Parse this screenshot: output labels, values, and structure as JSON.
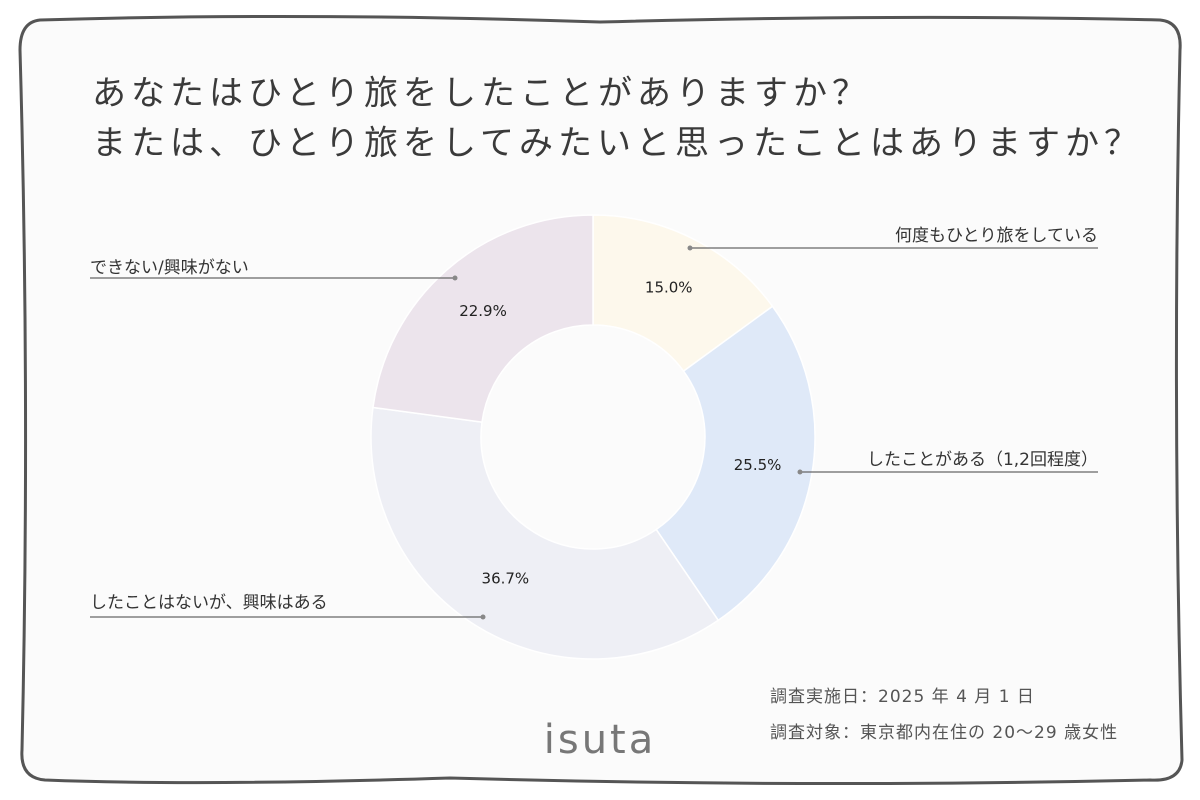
{
  "chart_data": {
    "type": "donut",
    "title_lines": [
      "あなたはひとり旅をしたことがありますか？",
      "または、ひとり旅をしてみたいと思ったことはありますか？"
    ],
    "categories": [
      "何度もひとり旅をしている",
      "したことがある（1,2回程度）",
      "したことはないが、興味はある",
      "できない/興味がない"
    ],
    "values": [
      15.0,
      25.5,
      36.7,
      22.9
    ],
    "value_labels": [
      "15.0%",
      "25.5%",
      "36.7%",
      "22.9%"
    ],
    "colors": [
      "#fdf8ec",
      "#dfe9f8",
      "#eeeff5",
      "#ece4ec"
    ]
  },
  "footer": {
    "survey_date": "調査実施日：2025 年 4 月 1 日",
    "survey_target": "調査対象：東京都内在住の 20〜29 歳女性",
    "logo": "isuta"
  }
}
